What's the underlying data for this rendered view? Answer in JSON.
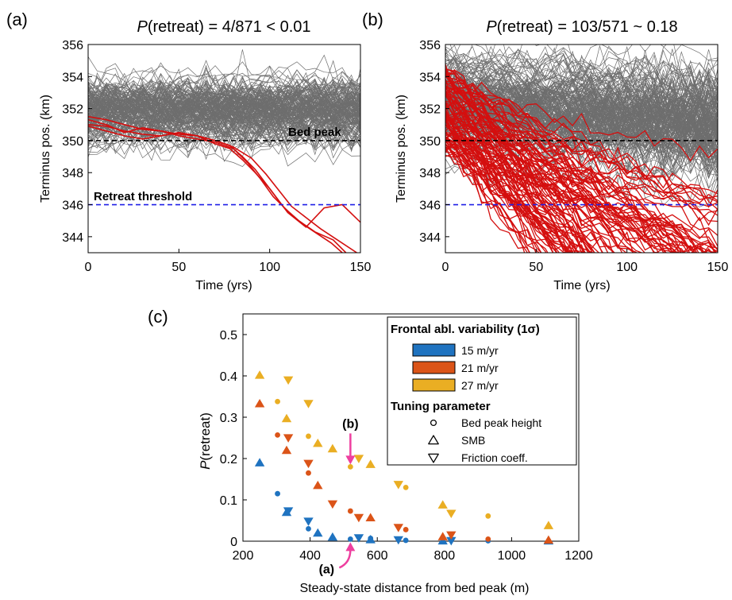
{
  "panels": {
    "a": {
      "letter": "(a)"
    },
    "b": {
      "letter": "(b)"
    },
    "c": {
      "letter": "(c)"
    }
  },
  "colors": {
    "ensemble": "#6e6e6e",
    "retreat": "#d40f0f",
    "bed_peak_line": "#000000",
    "threshold_line": "#1f1fe6",
    "sigma15": "#1f73c0",
    "sigma21": "#db5418",
    "sigma27": "#eaae23",
    "annotation": "#ee3f9f"
  },
  "chart_data": [
    {
      "id": "a",
      "type": "line",
      "title_prefix": "P",
      "title_suffix": "(retreat) = 4/871 < 0.01",
      "xlabel": "Time (yrs)",
      "ylabel": "Terminus pos. (km)",
      "xlim": [
        0,
        150
      ],
      "ylim": [
        343,
        356
      ],
      "xticks": [
        0,
        50,
        100,
        150
      ],
      "yticks": [
        344,
        346,
        348,
        350,
        352,
        354,
        356
      ],
      "bed_peak": {
        "y": 350,
        "label": "Bed peak"
      },
      "retreat_threshold": {
        "y": 346,
        "label": "Retreat threshold"
      },
      "ensemble": {
        "count": 871,
        "mean": 351.9,
        "sd": 1.0
      },
      "retreat_series": [
        {
          "x": [
            0,
            10,
            20,
            30,
            40,
            50,
            60,
            70,
            78,
            85,
            92,
            100,
            110,
            120,
            130,
            140,
            150
          ],
          "y": [
            351.5,
            351.3,
            351.0,
            350.7,
            350.6,
            350.4,
            350.3,
            350.0,
            349.7,
            349.0,
            348.2,
            347.0,
            345.5,
            344.6,
            345.8,
            346.0,
            344.9
          ]
        },
        {
          "x": [
            0,
            10,
            20,
            30,
            40,
            50,
            60,
            70,
            78,
            85,
            92,
            100,
            108,
            116,
            125,
            135,
            142
          ],
          "y": [
            351.0,
            350.9,
            350.6,
            350.4,
            350.3,
            350.5,
            350.3,
            349.8,
            349.5,
            348.8,
            348.0,
            347.0,
            345.8,
            345.0,
            344.3,
            343.8,
            343.0
          ]
        },
        {
          "x": [
            0,
            10,
            20,
            30,
            40,
            50,
            60,
            70,
            80,
            88,
            95,
            102,
            110,
            118,
            126,
            134,
            140
          ],
          "y": [
            351.3,
            351.0,
            350.5,
            350.8,
            350.6,
            350.3,
            350.1,
            349.9,
            349.5,
            348.6,
            347.6,
            346.5,
            345.6,
            344.8,
            344.2,
            343.6,
            343.0
          ]
        },
        {
          "x": [
            0,
            10,
            20,
            30,
            40,
            50,
            60,
            70,
            80,
            90,
            98,
            105,
            112,
            120,
            128,
            136,
            148
          ],
          "y": [
            350.9,
            350.6,
            350.3,
            350.1,
            350.3,
            350.5,
            350.3,
            350.0,
            349.6,
            348.9,
            347.9,
            346.9,
            345.9,
            345.2,
            344.5,
            343.9,
            343.0
          ]
        }
      ]
    },
    {
      "id": "b",
      "type": "line",
      "title_prefix": "P",
      "title_suffix": "(retreat) = 103/571 ~ 0.18",
      "xlabel": "Time (yrs)",
      "ylabel": "Terminus pos. (km)",
      "xlim": [
        0,
        150
      ],
      "ylim": [
        343,
        356
      ],
      "xticks": [
        0,
        50,
        100,
        150
      ],
      "yticks": [
        344,
        346,
        348,
        350,
        352,
        354,
        356
      ],
      "bed_peak": {
        "y": 350
      },
      "retreat_threshold": {
        "y": 346
      },
      "ensemble": {
        "count": 571,
        "mean": 352.6,
        "sd": 1.6,
        "trend_per_yr": -0.012
      },
      "retreat_count": 103,
      "retreat_start_range": [
        349.5,
        354.5
      ],
      "retreat_rate_range_per_yr": [
        0.03,
        0.16
      ]
    },
    {
      "id": "c",
      "type": "scatter",
      "xlabel": "Steady-state distance from bed peak (m)",
      "ylabel_prefix": "P",
      "ylabel_suffix": "(retreat)",
      "xlim": [
        200,
        1200
      ],
      "ylim": [
        0,
        0.55
      ],
      "xticks": [
        200,
        400,
        600,
        800,
        1000,
        1200
      ],
      "yticks": [
        0,
        0.1,
        0.2,
        0.3,
        0.4,
        0.5
      ],
      "legend": {
        "title1": "Frontal abl. variability (1σ)",
        "title2": "Tuning parameter",
        "colors": [
          {
            "label": "15 m/yr",
            "color_key": "sigma15"
          },
          {
            "label": "21 m/yr",
            "color_key": "sigma21"
          },
          {
            "label": "27 m/yr",
            "color_key": "sigma27"
          }
        ],
        "markers": [
          {
            "label": "Bed peak height",
            "marker": "circle"
          },
          {
            "label": "SMB",
            "marker": "triangle-up"
          },
          {
            "label": "Friction coeff.",
            "marker": "triangle-down"
          }
        ]
      },
      "annotations": [
        {
          "text": "(b)",
          "x": 520,
          "y": 0.18
        },
        {
          "text": "(a)",
          "x": 520,
          "y": 0.005
        }
      ],
      "series": [
        {
          "name": "15 m/yr",
          "color_key": "sigma15",
          "marker": "circle",
          "x": [
            303,
            395,
            520,
            580,
            685,
            930
          ],
          "y": [
            0.115,
            0.03,
            0.005,
            0.007,
            0.002,
            0.001
          ]
        },
        {
          "name": "15 m/yr",
          "color_key": "sigma15",
          "marker": "triangle-up",
          "x": [
            250,
            330,
            423,
            467,
            580,
            795,
            1110
          ],
          "y": [
            0.19,
            0.07,
            0.02,
            0.01,
            0.004,
            0.001,
            0.001
          ]
        },
        {
          "name": "15 m/yr",
          "color_key": "sigma15",
          "marker": "triangle-down",
          "x": [
            335,
            395,
            545,
            663,
            820
          ],
          "y": [
            0.073,
            0.048,
            0.008,
            0.003,
            0.001
          ]
        },
        {
          "name": "21 m/yr",
          "color_key": "sigma21",
          "marker": "circle",
          "x": [
            303,
            395,
            520,
            685,
            930
          ],
          "y": [
            0.257,
            0.165,
            0.073,
            0.028,
            0.005
          ]
        },
        {
          "name": "21 m/yr",
          "color_key": "sigma21",
          "marker": "triangle-up",
          "x": [
            250,
            330,
            423,
            580,
            795,
            1110
          ],
          "y": [
            0.333,
            0.22,
            0.135,
            0.057,
            0.011,
            0.003
          ]
        },
        {
          "name": "21 m/yr",
          "color_key": "sigma21",
          "marker": "triangle-down",
          "x": [
            335,
            395,
            467,
            545,
            663,
            820
          ],
          "y": [
            0.25,
            0.188,
            0.09,
            0.057,
            0.033,
            0.015
          ]
        },
        {
          "name": "27 m/yr",
          "color_key": "sigma27",
          "marker": "circle",
          "x": [
            303,
            395,
            520,
            685,
            930
          ],
          "y": [
            0.338,
            0.254,
            0.18,
            0.13,
            0.061
          ]
        },
        {
          "name": "27 m/yr",
          "color_key": "sigma27",
          "marker": "triangle-up",
          "x": [
            250,
            330,
            423,
            467,
            580,
            795,
            1110
          ],
          "y": [
            0.402,
            0.297,
            0.237,
            0.224,
            0.186,
            0.088,
            0.038
          ]
        },
        {
          "name": "27 m/yr",
          "color_key": "sigma27",
          "marker": "triangle-down",
          "x": [
            335,
            395,
            545,
            663,
            820
          ],
          "y": [
            0.39,
            0.333,
            0.2,
            0.137,
            0.067
          ]
        }
      ]
    }
  ]
}
